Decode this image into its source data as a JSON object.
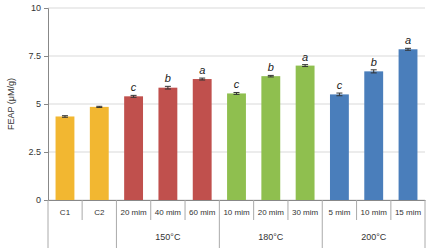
{
  "chart_data": {
    "type": "bar",
    "ylabel": "FEAP (μM/g)",
    "categories": [
      "C1",
      "C2",
      "20 mim",
      "40 mim",
      "60 mim",
      "10 mim",
      "20 mim",
      "30 mim",
      "5 mim",
      "10 mim",
      "15 mim"
    ],
    "values": [
      4.35,
      4.85,
      5.4,
      5.85,
      6.3,
      5.55,
      6.45,
      7.0,
      5.5,
      6.7,
      7.85
    ],
    "errors": [
      0.04,
      0.03,
      0.05,
      0.07,
      0.05,
      0.05,
      0.04,
      0.05,
      0.07,
      0.08,
      0.05
    ],
    "colors": [
      "#f2b731",
      "#f2b731",
      "#c0504d",
      "#c0504d",
      "#c0504d",
      "#8fbf4f",
      "#8fbf4f",
      "#8fbf4f",
      "#4a7ebb",
      "#4a7ebb",
      "#4a7ebb"
    ],
    "annotations": [
      null,
      null,
      "c",
      "b",
      "a",
      "c",
      "b",
      "a",
      "c",
      "b",
      "a"
    ],
    "groups": [
      {
        "label": null,
        "count": 2
      },
      {
        "label": "150°C",
        "count": 3
      },
      {
        "label": "180°C",
        "count": 3
      },
      {
        "label": "200°C",
        "count": 3
      }
    ],
    "ylim": [
      0,
      10
    ],
    "yticks": [
      0,
      2.5,
      5,
      7.5,
      10
    ],
    "grid": true
  }
}
